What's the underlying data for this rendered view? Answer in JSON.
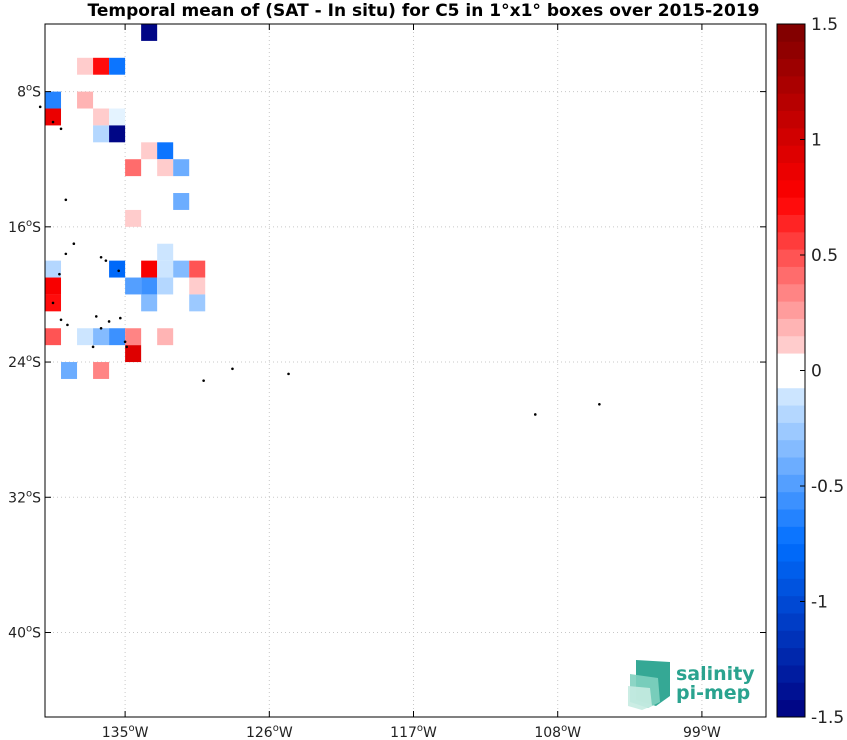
{
  "title": "Temporal mean of (SAT - In situ) for C5 in 1°x1° boxes over 2015-2019",
  "map": {
    "lon_range": [
      -140,
      -95
    ],
    "lat_range": [
      -45,
      -4
    ],
    "lon_ticks": [
      {
        "value": -135,
        "label": "135",
        "unit": "oW"
      },
      {
        "value": -126,
        "label": "126",
        "unit": "oW"
      },
      {
        "value": -117,
        "label": "117",
        "unit": "oW"
      },
      {
        "value": -108,
        "label": "108",
        "unit": "oW"
      },
      {
        "value": -99,
        "label": "99",
        "unit": "oW"
      }
    ],
    "lat_ticks": [
      {
        "value": -8,
        "label": "8",
        "unit": "oS"
      },
      {
        "value": -16,
        "label": "16",
        "unit": "oS"
      },
      {
        "value": -24,
        "label": "24",
        "unit": "oS"
      },
      {
        "value": -32,
        "label": "32",
        "unit": "oS"
      },
      {
        "value": -40,
        "label": "40",
        "unit": "oS"
      }
    ],
    "grid": true,
    "cells": [
      {
        "lon": -134,
        "lat": -4,
        "v": -1.45
      },
      {
        "lon": -138,
        "lat": -6,
        "v": 0.15
      },
      {
        "lon": -137,
        "lat": -6,
        "v": 0.7
      },
      {
        "lon": -136,
        "lat": -6,
        "v": -0.75
      },
      {
        "lon": -140,
        "lat": -8,
        "v": -0.65
      },
      {
        "lon": -138,
        "lat": -8,
        "v": 0.2
      },
      {
        "lon": -140,
        "lat": -9,
        "v": 0.85
      },
      {
        "lon": -137,
        "lat": -9,
        "v": 0.1
      },
      {
        "lon": -136,
        "lat": -9,
        "v": -0.05
      },
      {
        "lon": -137,
        "lat": -10,
        "v": -0.2
      },
      {
        "lon": -136,
        "lat": -10,
        "v": -1.5
      },
      {
        "lon": -134,
        "lat": -11,
        "v": 0.15
      },
      {
        "lon": -133,
        "lat": -11,
        "v": -0.75
      },
      {
        "lon": -135,
        "lat": -12,
        "v": 0.4
      },
      {
        "lon": -133,
        "lat": -12,
        "v": 0.15
      },
      {
        "lon": -132,
        "lat": -12,
        "v": -0.4
      },
      {
        "lon": -132,
        "lat": -14,
        "v": -0.4
      },
      {
        "lon": -135,
        "lat": -15,
        "v": 0.15
      },
      {
        "lon": -133,
        "lat": -17,
        "v": -0.1
      },
      {
        "lon": -140,
        "lat": -18,
        "v": -0.2
      },
      {
        "lon": -136,
        "lat": -18,
        "v": -0.8
      },
      {
        "lon": -134,
        "lat": -18,
        "v": 0.75
      },
      {
        "lon": -133,
        "lat": -18,
        "v": -0.1
      },
      {
        "lon": -132,
        "lat": -18,
        "v": -0.35
      },
      {
        "lon": -131,
        "lat": -18,
        "v": 0.5
      },
      {
        "lon": -140,
        "lat": -19,
        "v": 0.75
      },
      {
        "lon": -135,
        "lat": -19,
        "v": -0.5
      },
      {
        "lon": -134,
        "lat": -19,
        "v": -0.55
      },
      {
        "lon": -133,
        "lat": -19,
        "v": -0.2
      },
      {
        "lon": -131,
        "lat": -19,
        "v": 0.1
      },
      {
        "lon": -140,
        "lat": -20,
        "v": 0.7
      },
      {
        "lon": -134,
        "lat": -20,
        "v": -0.35
      },
      {
        "lon": -131,
        "lat": -20,
        "v": -0.25
      },
      {
        "lon": -140,
        "lat": -22,
        "v": 0.5
      },
      {
        "lon": -138,
        "lat": -22,
        "v": -0.15
      },
      {
        "lon": -137,
        "lat": -22,
        "v": -0.3
      },
      {
        "lon": -136,
        "lat": -22,
        "v": -0.6
      },
      {
        "lon": -135,
        "lat": -22,
        "v": 0.3
      },
      {
        "lon": -133,
        "lat": -22,
        "v": 0.2
      },
      {
        "lon": -135,
        "lat": -23,
        "v": 0.95
      },
      {
        "lon": -139,
        "lat": -24,
        "v": -0.4
      },
      {
        "lon": -137,
        "lat": -24,
        "v": 0.3
      }
    ],
    "islands": [
      {
        "lon": -140.3,
        "lat": -8.9
      },
      {
        "lon": -139.5,
        "lat": -9.8
      },
      {
        "lon": -139.0,
        "lat": -10.2
      },
      {
        "lon": -138.7,
        "lat": -14.4
      },
      {
        "lon": -138.2,
        "lat": -17.0
      },
      {
        "lon": -138.7,
        "lat": -17.6
      },
      {
        "lon": -136.5,
        "lat": -17.8
      },
      {
        "lon": -136.2,
        "lat": -18.0
      },
      {
        "lon": -135.4,
        "lat": -18.6
      },
      {
        "lon": -139.1,
        "lat": -18.8
      },
      {
        "lon": -139.5,
        "lat": -20.5
      },
      {
        "lon": -139.0,
        "lat": -21.5
      },
      {
        "lon": -136.8,
        "lat": -21.3
      },
      {
        "lon": -136.0,
        "lat": -21.6
      },
      {
        "lon": -135.3,
        "lat": -21.4
      },
      {
        "lon": -136.5,
        "lat": -22.0
      },
      {
        "lon": -135.0,
        "lat": -22.8
      },
      {
        "lon": -134.9,
        "lat": -23.1
      },
      {
        "lon": -138.6,
        "lat": -21.8
      },
      {
        "lon": -137.0,
        "lat": -23.1
      },
      {
        "lon": -130.1,
        "lat": -25.1
      },
      {
        "lon": -128.3,
        "lat": -24.4
      },
      {
        "lon": -124.8,
        "lat": -24.7
      },
      {
        "lon": -109.4,
        "lat": -27.1
      },
      {
        "lon": -105.4,
        "lat": -26.5
      }
    ]
  },
  "colorbar": {
    "min": -1.5,
    "max": 1.5,
    "levels": 40,
    "tick_labels": [
      {
        "value": 1.5,
        "label": "1.5"
      },
      {
        "value": 1.0,
        "label": "1"
      },
      {
        "value": 0.5,
        "label": "0.5"
      },
      {
        "value": 0.0,
        "label": "0"
      },
      {
        "value": -0.5,
        "label": "-0.5"
      },
      {
        "value": -1.0,
        "label": "-1"
      },
      {
        "value": -1.5,
        "label": "-1.5"
      }
    ]
  },
  "logo": {
    "line1": "salinity",
    "line2": "pi-mep",
    "color": "#2aa38f"
  }
}
